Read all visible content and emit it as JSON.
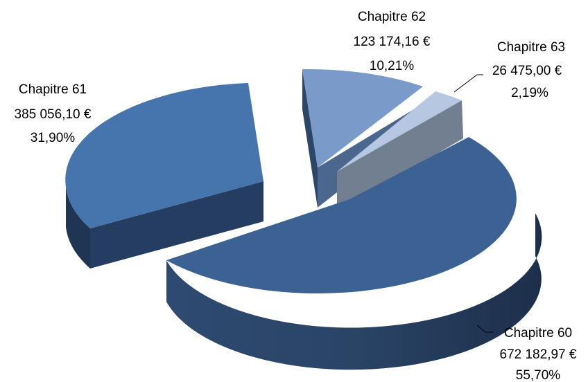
{
  "chart_data": {
    "type": "pie",
    "style": "3d-exploded",
    "title": "",
    "slices": [
      {
        "label": "Chapitre 60",
        "value": 672182.97,
        "value_text": "672 182,97 €",
        "percent_text": "55,70%",
        "color": "#3b6293"
      },
      {
        "label": "Chapitre 61",
        "value": 385056.1,
        "value_text": "385 056,10 €",
        "percent_text": "31,90%",
        "color": "#4674ad"
      },
      {
        "label": "Chapitre 62",
        "value": 123174.16,
        "value_text": "123 174,16 €",
        "percent_text": "10,21%",
        "color": "#7a9bc9"
      },
      {
        "label": "Chapitre 63",
        "value": 26475.0,
        "value_text": "26 475,00 €",
        "percent_text": "2,19%",
        "color": "#b6c7e1"
      }
    ],
    "legend": "none",
    "data_labels": "outside"
  }
}
